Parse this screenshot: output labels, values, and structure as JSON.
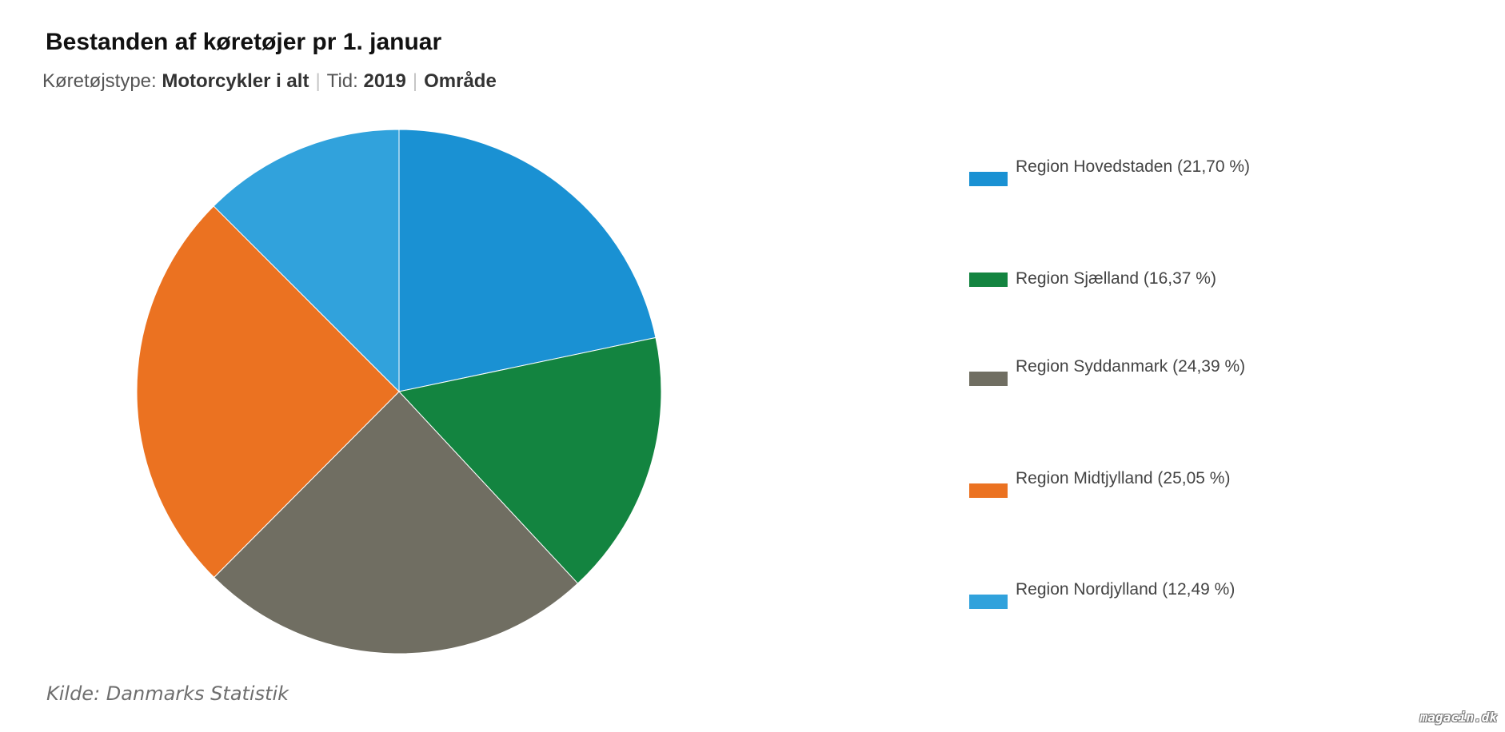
{
  "chart_data": {
    "type": "pie",
    "title": "Bestanden af køretøjer pr 1. januar",
    "subtitle": {
      "label1": "Køretøjstype:",
      "value1": "Motorcykler i alt",
      "label2": "Tid:",
      "value2": "2019",
      "value3": "Område"
    },
    "slices": [
      {
        "label": "Region Hovedstaden (21,70 %)",
        "value": 21.7,
        "color": "#1a91d3"
      },
      {
        "label": "Region Sjælland (16,37 %)",
        "value": 16.37,
        "color": "#138440"
      },
      {
        "label": "Region Syddanmark (24,39 %)",
        "value": 24.39,
        "color": "#706e62"
      },
      {
        "label": "Region Midtjylland (25,05 %)",
        "value": 25.05,
        "color": "#eb7221"
      },
      {
        "label": "Region Nordjylland (12,49 %)",
        "value": 12.49,
        "color": "#31a2dc"
      }
    ],
    "legend_position": "right"
  },
  "source": "Kilde: Danmarks Statistik",
  "watermark": "magacin.dk"
}
